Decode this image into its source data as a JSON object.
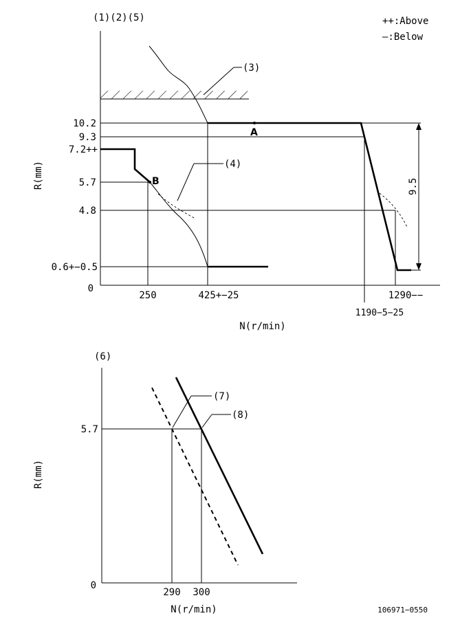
{
  "diagram1": {
    "header_label": "(1)(2)(5)",
    "legend": {
      "above": "++:Above",
      "below": "—:Below"
    },
    "y_axis_label": "R(mm)",
    "x_axis_label": "N(r/min)",
    "origin_label": "0",
    "y_ticks": [
      "10.2",
      "9.3",
      "7.2++",
      "5.7",
      "4.8",
      "0.6+−0.5"
    ],
    "x_ticks": [
      "250",
      "425+−25",
      "1190−5−25",
      "1290−−"
    ],
    "callouts": {
      "c3": "(3)",
      "c4": "(4)"
    },
    "point_a": "A",
    "point_b": "B",
    "dimension": "9.5"
  },
  "diagram2": {
    "header_label": "(6)",
    "y_axis_label": "R(mm)",
    "x_axis_label": "N(r/min)",
    "origin_label": "0",
    "y_tick": "5.7",
    "x_ticks": [
      "290",
      "300"
    ],
    "callouts": {
      "c7": "(7)",
      "c8": "(8)"
    }
  },
  "footer_code": "106971−0550"
}
